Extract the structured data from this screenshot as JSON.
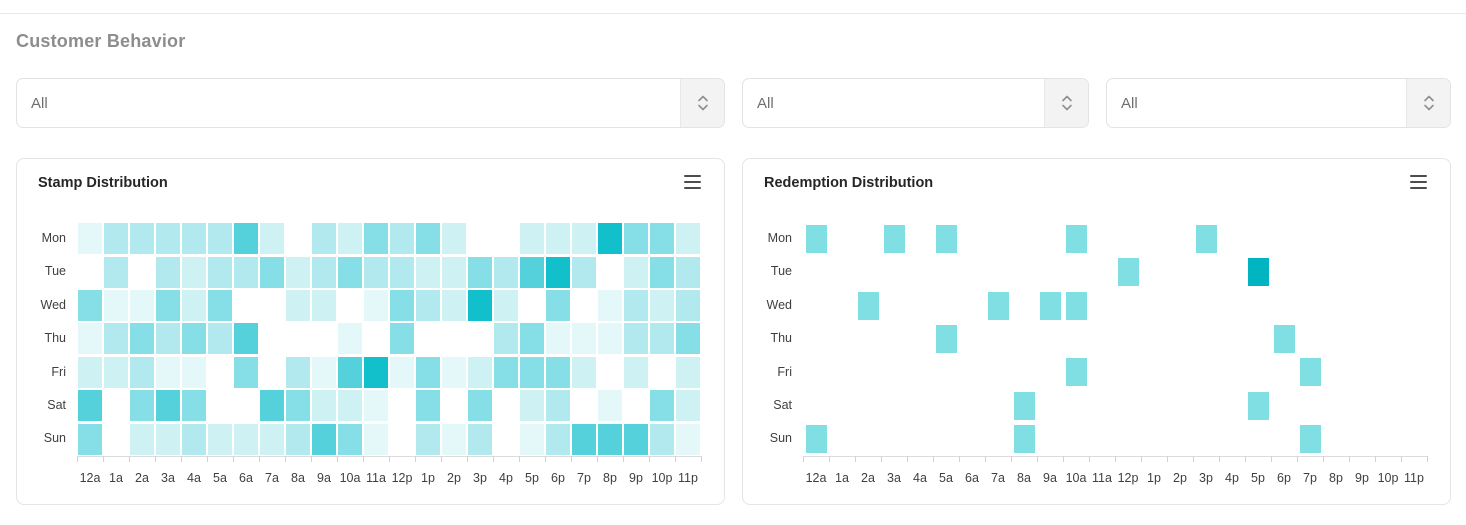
{
  "page": {
    "heading": "Customer Behavior"
  },
  "filters": [
    {
      "value": "All"
    },
    {
      "value": "All"
    },
    {
      "value": "All"
    }
  ],
  "icons": {
    "select_stepper": "up-down-chevrons-icon",
    "chart_menu": "hamburger-icon"
  },
  "colors": {
    "accent_teal": "#12c0cc",
    "card_border": "#e5e5e5",
    "axis": "#dcdcdc",
    "label_text": "#3f3f3f"
  },
  "chart_data": [
    {
      "type": "heatmap",
      "title": "Stamp Distribution",
      "x_categories": [
        "12a",
        "1a",
        "2a",
        "3a",
        "4a",
        "5a",
        "6a",
        "7a",
        "8a",
        "9a",
        "10a",
        "11a",
        "12p",
        "1p",
        "2p",
        "3p",
        "4p",
        "5p",
        "6p",
        "7p",
        "8p",
        "9p",
        "10p",
        "11p"
      ],
      "y_categories": [
        "Mon",
        "Tue",
        "Wed",
        "Thu",
        "Fri",
        "Sat",
        "Sun"
      ],
      "values_note": "relative intensity 0 (blank) to 6 (darkest), read from cell color; no numeric labels shown in chart",
      "rows": [
        [
          1,
          3,
          3,
          3,
          3,
          3,
          5,
          2,
          0,
          3,
          2,
          4,
          3,
          4,
          2,
          0,
          0,
          2,
          2,
          2,
          6,
          4,
          4,
          2
        ],
        [
          0,
          3,
          0,
          3,
          2,
          3,
          3,
          4,
          2,
          3,
          4,
          3,
          3,
          2,
          2,
          4,
          3,
          5,
          6,
          3,
          0,
          2,
          4,
          3
        ],
        [
          4,
          1,
          1,
          4,
          2,
          4,
          0,
          0,
          2,
          2,
          0,
          1,
          4,
          3,
          2,
          6,
          2,
          0,
          4,
          0,
          1,
          3,
          2,
          3
        ],
        [
          1,
          3,
          4,
          3,
          4,
          3,
          5,
          0,
          0,
          0,
          1,
          0,
          4,
          0,
          0,
          0,
          3,
          4,
          1,
          1,
          1,
          3,
          3,
          4
        ],
        [
          2,
          2,
          3,
          1,
          1,
          0,
          4,
          0,
          3,
          1,
          5,
          6,
          1,
          4,
          1,
          2,
          4,
          4,
          4,
          2,
          0,
          2,
          0,
          2
        ],
        [
          5,
          0,
          4,
          5,
          4,
          0,
          0,
          5,
          4,
          2,
          2,
          1,
          0,
          4,
          0,
          4,
          0,
          2,
          3,
          0,
          1,
          0,
          4,
          2
        ],
        [
          4,
          0,
          2,
          2,
          3,
          2,
          2,
          2,
          3,
          5,
          4,
          1,
          0,
          3,
          1,
          3,
          0,
          1,
          3,
          5,
          5,
          5,
          3,
          1
        ]
      ],
      "palette": [
        "#ffffff",
        "#e4f7f9",
        "#cef1f4",
        "#b2e9ee",
        "#86dee6",
        "#55d1dc",
        "#12c0cc"
      ],
      "legend": false,
      "grid": false
    },
    {
      "type": "heatmap",
      "title": "Redemption Distribution",
      "x_categories": [
        "12a",
        "1a",
        "2a",
        "3a",
        "4a",
        "5a",
        "6a",
        "7a",
        "8a",
        "9a",
        "10a",
        "11a",
        "12p",
        "1p",
        "2p",
        "3p",
        "4p",
        "5p",
        "6p",
        "7p",
        "8p",
        "9p",
        "10p",
        "11p"
      ],
      "y_categories": [
        "Mon",
        "Tue",
        "Wed",
        "Thu",
        "Fri",
        "Sat",
        "Sun"
      ],
      "values_note": "relative intensity 0 (blank), 1 (teal), 2 (dark teal); no numeric labels shown in chart",
      "rows": [
        [
          1,
          0,
          0,
          1,
          0,
          1,
          0,
          0,
          0,
          0,
          1,
          0,
          0,
          0,
          0,
          1,
          0,
          0,
          0,
          0,
          0,
          0,
          0,
          0
        ],
        [
          0,
          0,
          0,
          0,
          0,
          0,
          0,
          0,
          0,
          0,
          0,
          0,
          1,
          0,
          0,
          0,
          0,
          2,
          0,
          0,
          0,
          0,
          0,
          0
        ],
        [
          0,
          0,
          1,
          0,
          0,
          0,
          0,
          1,
          0,
          1,
          1,
          0,
          0,
          0,
          0,
          0,
          0,
          0,
          0,
          0,
          0,
          0,
          0,
          0
        ],
        [
          0,
          0,
          0,
          0,
          0,
          1,
          0,
          0,
          0,
          0,
          0,
          0,
          0,
          0,
          0,
          0,
          0,
          0,
          1,
          0,
          0,
          0,
          0,
          0
        ],
        [
          0,
          0,
          0,
          0,
          0,
          0,
          0,
          0,
          0,
          0,
          1,
          0,
          0,
          0,
          0,
          0,
          0,
          0,
          0,
          1,
          0,
          0,
          0,
          0
        ],
        [
          0,
          0,
          0,
          0,
          0,
          0,
          0,
          0,
          1,
          0,
          0,
          0,
          0,
          0,
          0,
          0,
          0,
          1,
          0,
          0,
          0,
          0,
          0,
          0
        ],
        [
          1,
          0,
          0,
          0,
          0,
          0,
          0,
          0,
          1,
          0,
          0,
          0,
          0,
          0,
          0,
          0,
          0,
          0,
          0,
          1,
          0,
          0,
          0,
          0
        ]
      ],
      "palette": [
        "#ffffff",
        "#7fdfe3",
        "#00b4c1"
      ],
      "legend": false,
      "grid": false
    }
  ]
}
